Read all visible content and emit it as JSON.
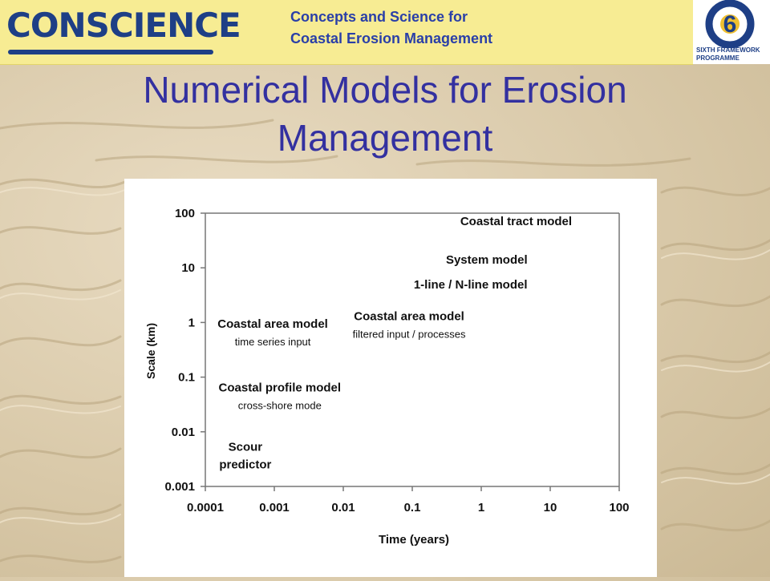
{
  "header": {
    "logo_text": "CONSCIENCE",
    "project_line1": "Concepts and Science for",
    "project_line2": "Coastal Erosion Management",
    "fp_label": "SIXTH FRAMEWORK PROGRAMME",
    "fp_number": "6"
  },
  "slide": {
    "title": "Numerical Models for Erosion Management"
  },
  "colors": {
    "header_bg": "#f7ec93",
    "title": "#3330a0",
    "logo_blue": "#1e3f86"
  },
  "chart_data": {
    "type": "table",
    "xlabel": "Time (years)",
    "ylabel": "Scale (km)",
    "xscale": "log",
    "yscale": "log",
    "xlim": [
      0.0001,
      100
    ],
    "ylim": [
      0.001,
      100
    ],
    "x_ticks": [
      "0.0001",
      "0.001",
      "0.01",
      "0.1",
      "1",
      "10",
      "100"
    ],
    "y_ticks": [
      "100",
      "10",
      "1",
      "0.1",
      "0.01",
      "0.001"
    ],
    "grid": false,
    "annotations": [
      {
        "x": 3.2,
        "y": 60,
        "lines": [
          {
            "text": "Coastal tract model",
            "bold": true
          }
        ]
      },
      {
        "x": 1.2,
        "y": 12,
        "lines": [
          {
            "text": "System model",
            "bold": true
          }
        ]
      },
      {
        "x": 0.7,
        "y": 4.2,
        "lines": [
          {
            "text": "1-line / N-line model",
            "bold": true
          }
        ]
      },
      {
        "x": 0.00095,
        "y": 0.8,
        "lines": [
          {
            "text": "Coastal area model",
            "bold": true
          },
          {
            "text": "time series input",
            "bold": false
          }
        ]
      },
      {
        "x": 0.09,
        "y": 1.1,
        "lines": [
          {
            "text": "Coastal area model",
            "bold": true
          },
          {
            "text": "filtered input / processes",
            "bold": false
          }
        ]
      },
      {
        "x": 0.0012,
        "y": 0.055,
        "lines": [
          {
            "text": "Coastal profile model",
            "bold": true
          },
          {
            "text": "cross-shore mode",
            "bold": false
          }
        ]
      },
      {
        "x": 0.00038,
        "y": 0.0045,
        "lines": [
          {
            "text": "Scour",
            "bold": true
          },
          {
            "text": "predictor",
            "bold": true
          }
        ]
      }
    ]
  }
}
